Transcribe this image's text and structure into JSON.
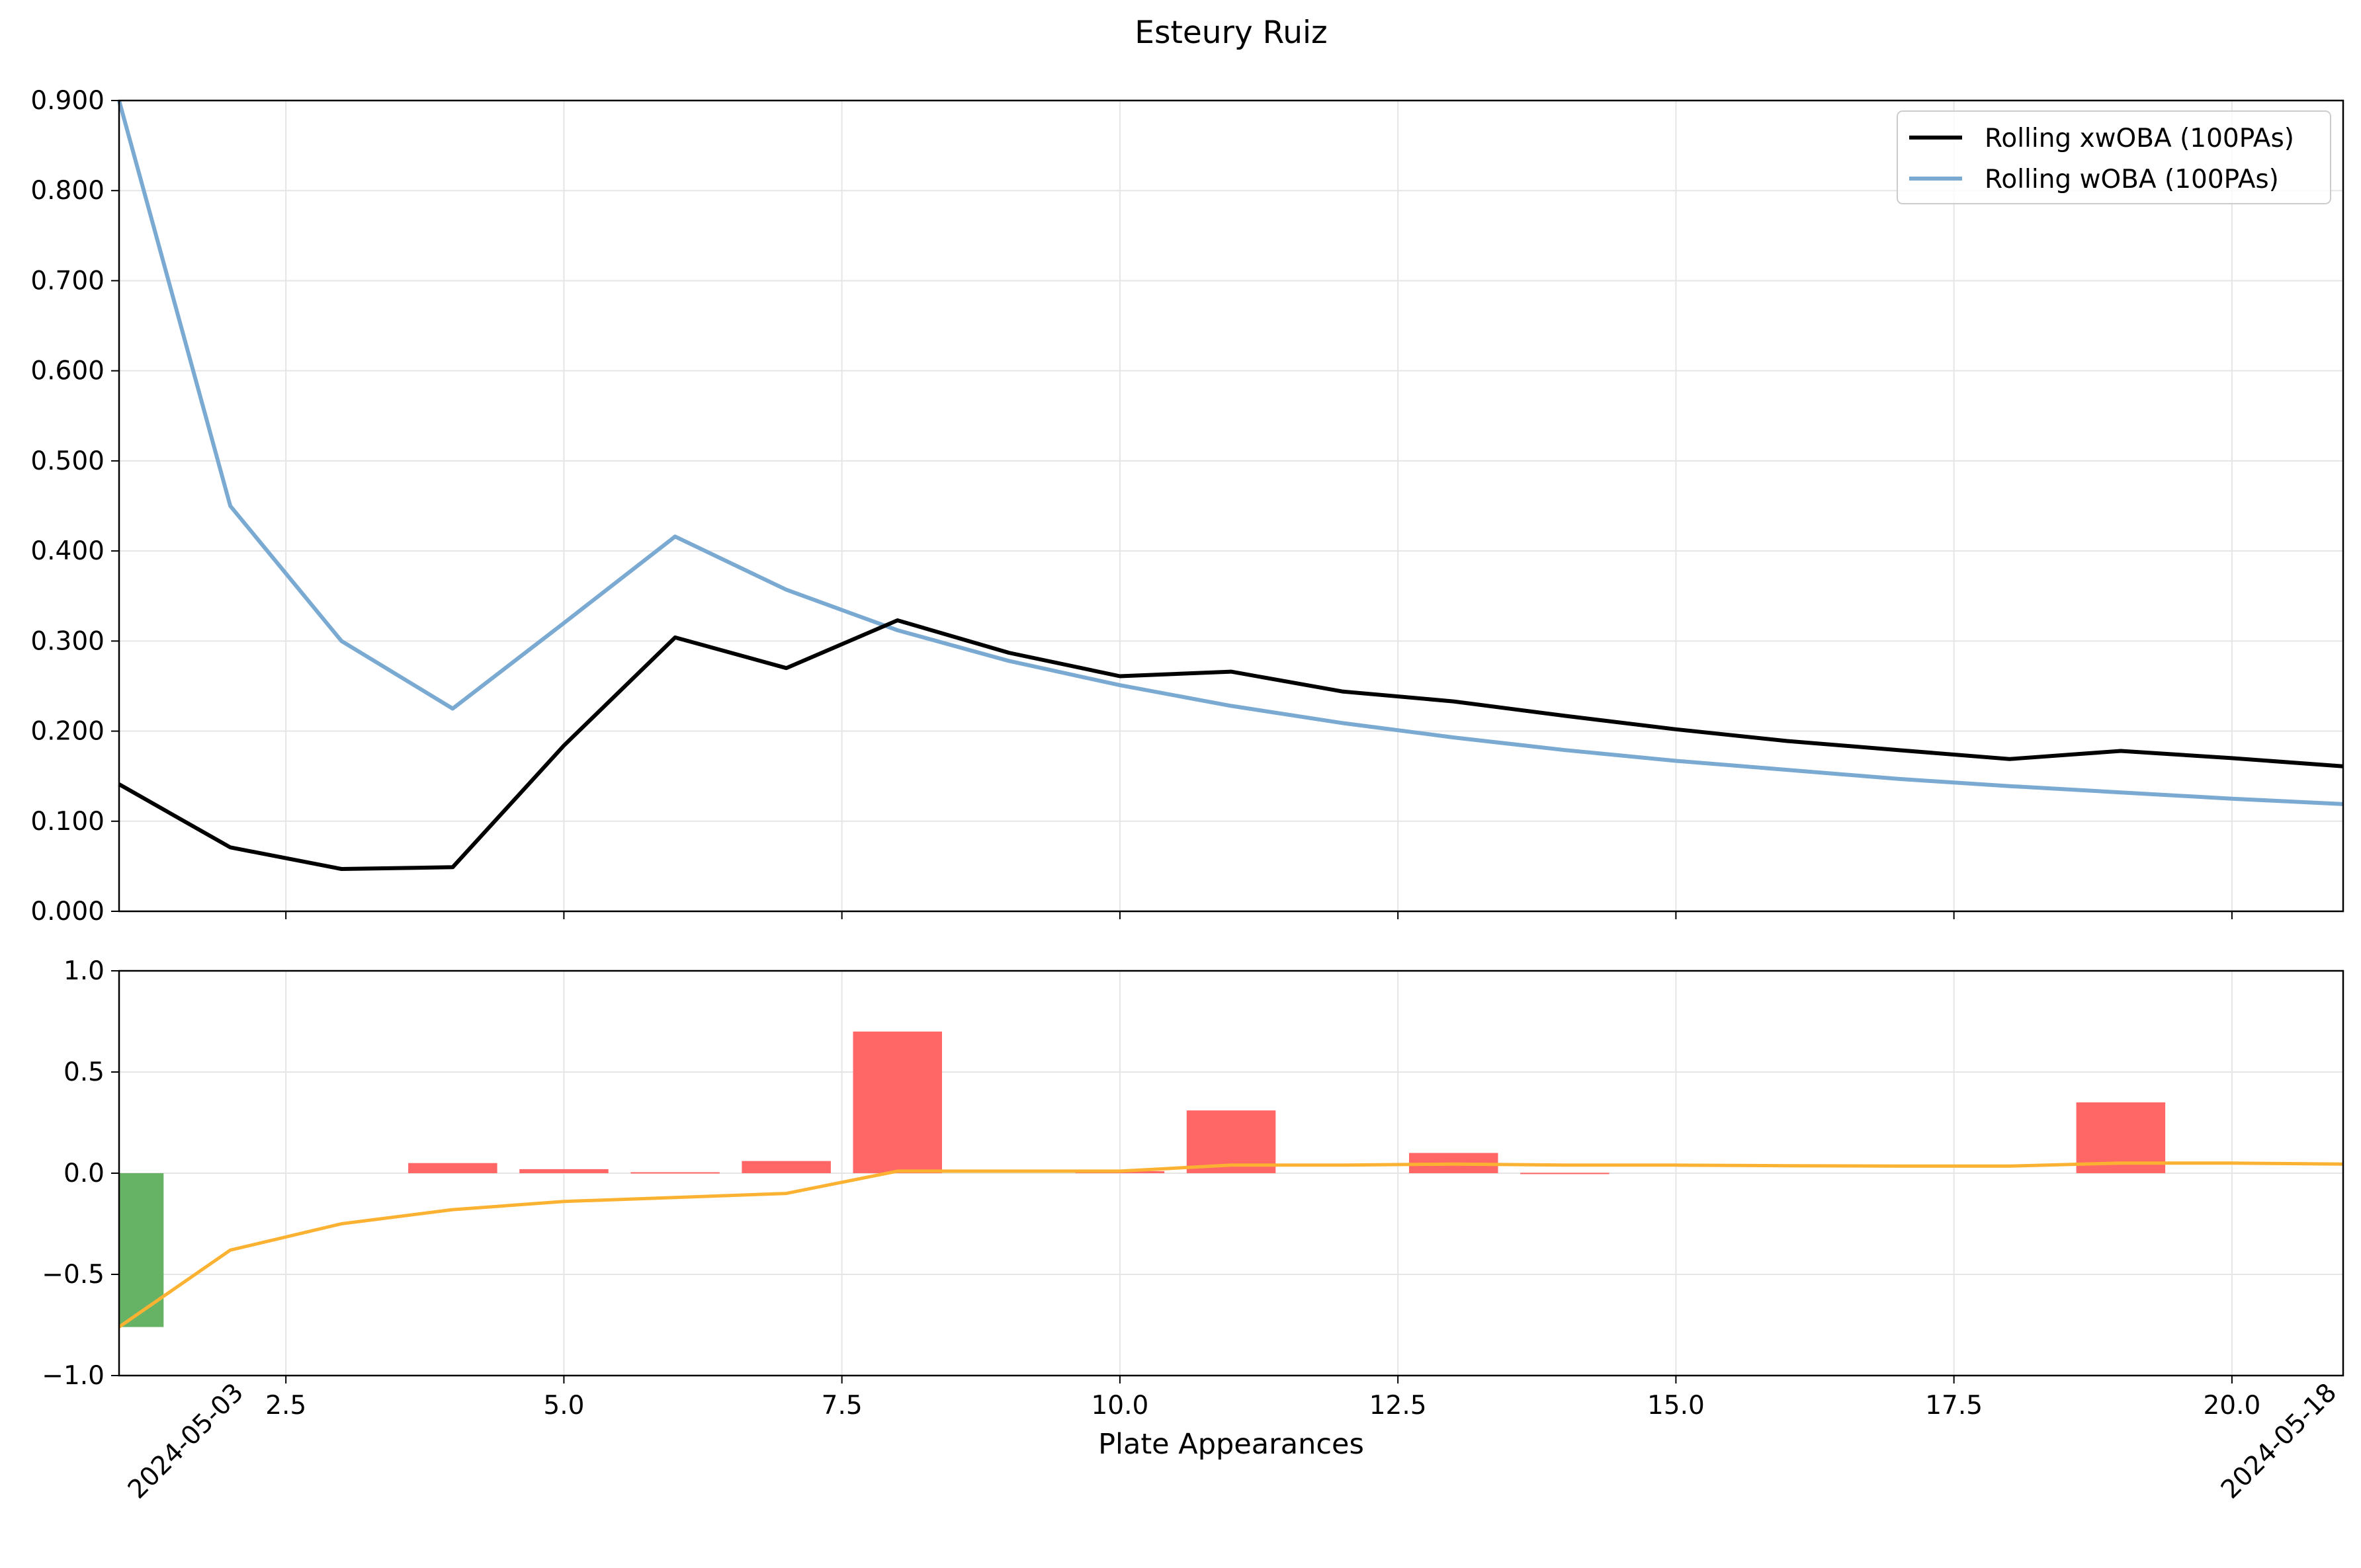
{
  "title": "Esteury Ruiz",
  "chart_data": [
    {
      "type": "line",
      "panel": "top",
      "xlim": [
        1,
        21
      ],
      "ylim": [
        0,
        0.9
      ],
      "yticks": [
        0.0,
        0.1,
        0.2,
        0.3,
        0.4,
        0.5,
        0.6,
        0.7,
        0.8,
        0.9
      ],
      "ytick_labels": [
        "0.000",
        "0.100",
        "0.200",
        "0.300",
        "0.400",
        "0.500",
        "0.600",
        "0.700",
        "0.800",
        "0.900"
      ],
      "grid": true,
      "legend_position": "top-right",
      "series": [
        {
          "name": "Rolling xwOBA (100PAs)",
          "color": "#000000",
          "x": [
            1,
            2,
            3,
            4,
            5,
            6,
            7,
            8,
            9,
            10,
            11,
            12,
            13,
            14,
            15,
            16,
            17,
            18,
            19,
            20,
            21
          ],
          "values": [
            0.141,
            0.071,
            0.047,
            0.049,
            0.184,
            0.304,
            0.27,
            0.323,
            0.287,
            0.261,
            0.266,
            0.244,
            0.233,
            0.217,
            0.202,
            0.189,
            0.179,
            0.169,
            0.178,
            0.17,
            0.161
          ]
        },
        {
          "name": "Rolling wOBA (100PAs)",
          "color": "#7aaad2",
          "x": [
            1,
            2,
            3,
            4,
            5,
            6,
            7,
            8,
            9,
            10,
            11,
            12,
            13,
            14,
            15,
            16,
            17,
            18,
            19,
            20,
            21
          ],
          "values": [
            0.9,
            0.45,
            0.3,
            0.225,
            0.32,
            0.416,
            0.357,
            0.312,
            0.278,
            0.251,
            0.228,
            0.209,
            0.193,
            0.179,
            0.167,
            0.157,
            0.147,
            0.139,
            0.132,
            0.125,
            0.119
          ]
        }
      ]
    },
    {
      "type": "bar",
      "panel": "bottom",
      "xlim": [
        1,
        21
      ],
      "ylim": [
        -1,
        1
      ],
      "yticks": [
        -1.0,
        -0.5,
        0.0,
        0.5,
        1.0
      ],
      "ytick_labels": [
        "−1.0",
        "−0.5",
        "0.0",
        "0.5",
        "1.0"
      ],
      "xticks": [
        2.5,
        5.0,
        7.5,
        10.0,
        12.5,
        15.0,
        17.5,
        20.0
      ],
      "xtick_labels": [
        "2.5",
        "5.0",
        "7.5",
        "10.0",
        "12.5",
        "15.0",
        "17.5",
        "20.0"
      ],
      "xlabel": "Plate Appearances",
      "grid": true,
      "bar_colors": {
        "positive": "#ff6666",
        "negative": "#66b366"
      },
      "bars": {
        "x": [
          1,
          2,
          3,
          4,
          5,
          6,
          7,
          8,
          9,
          10,
          11,
          12,
          13,
          14,
          15,
          16,
          17,
          18,
          19,
          20,
          21
        ],
        "values": [
          -0.76,
          0.0,
          0.0,
          0.05,
          0.02,
          0.005,
          0.06,
          0.7,
          0.0,
          0.01,
          0.31,
          0.0,
          0.1,
          0.002,
          0.0,
          0.0,
          0.0,
          0.0,
          0.35,
          0.0,
          0.0
        ]
      },
      "line": {
        "color": "#fbb232",
        "x": [
          1,
          2,
          3,
          4,
          5,
          6,
          7,
          8,
          9,
          10,
          11,
          12,
          13,
          14,
          15,
          16,
          17,
          18,
          19,
          20,
          21
        ],
        "values": [
          -0.76,
          -0.38,
          -0.25,
          -0.18,
          -0.14,
          -0.12,
          -0.1,
          0.01,
          0.01,
          0.01,
          0.04,
          0.04,
          0.045,
          0.04,
          0.04,
          0.037,
          0.035,
          0.035,
          0.05,
          0.05,
          0.045
        ]
      },
      "date_labels": [
        {
          "x": 1,
          "text": "2024-05-03"
        },
        {
          "x": 21,
          "text": "2024-05-18"
        }
      ]
    }
  ]
}
